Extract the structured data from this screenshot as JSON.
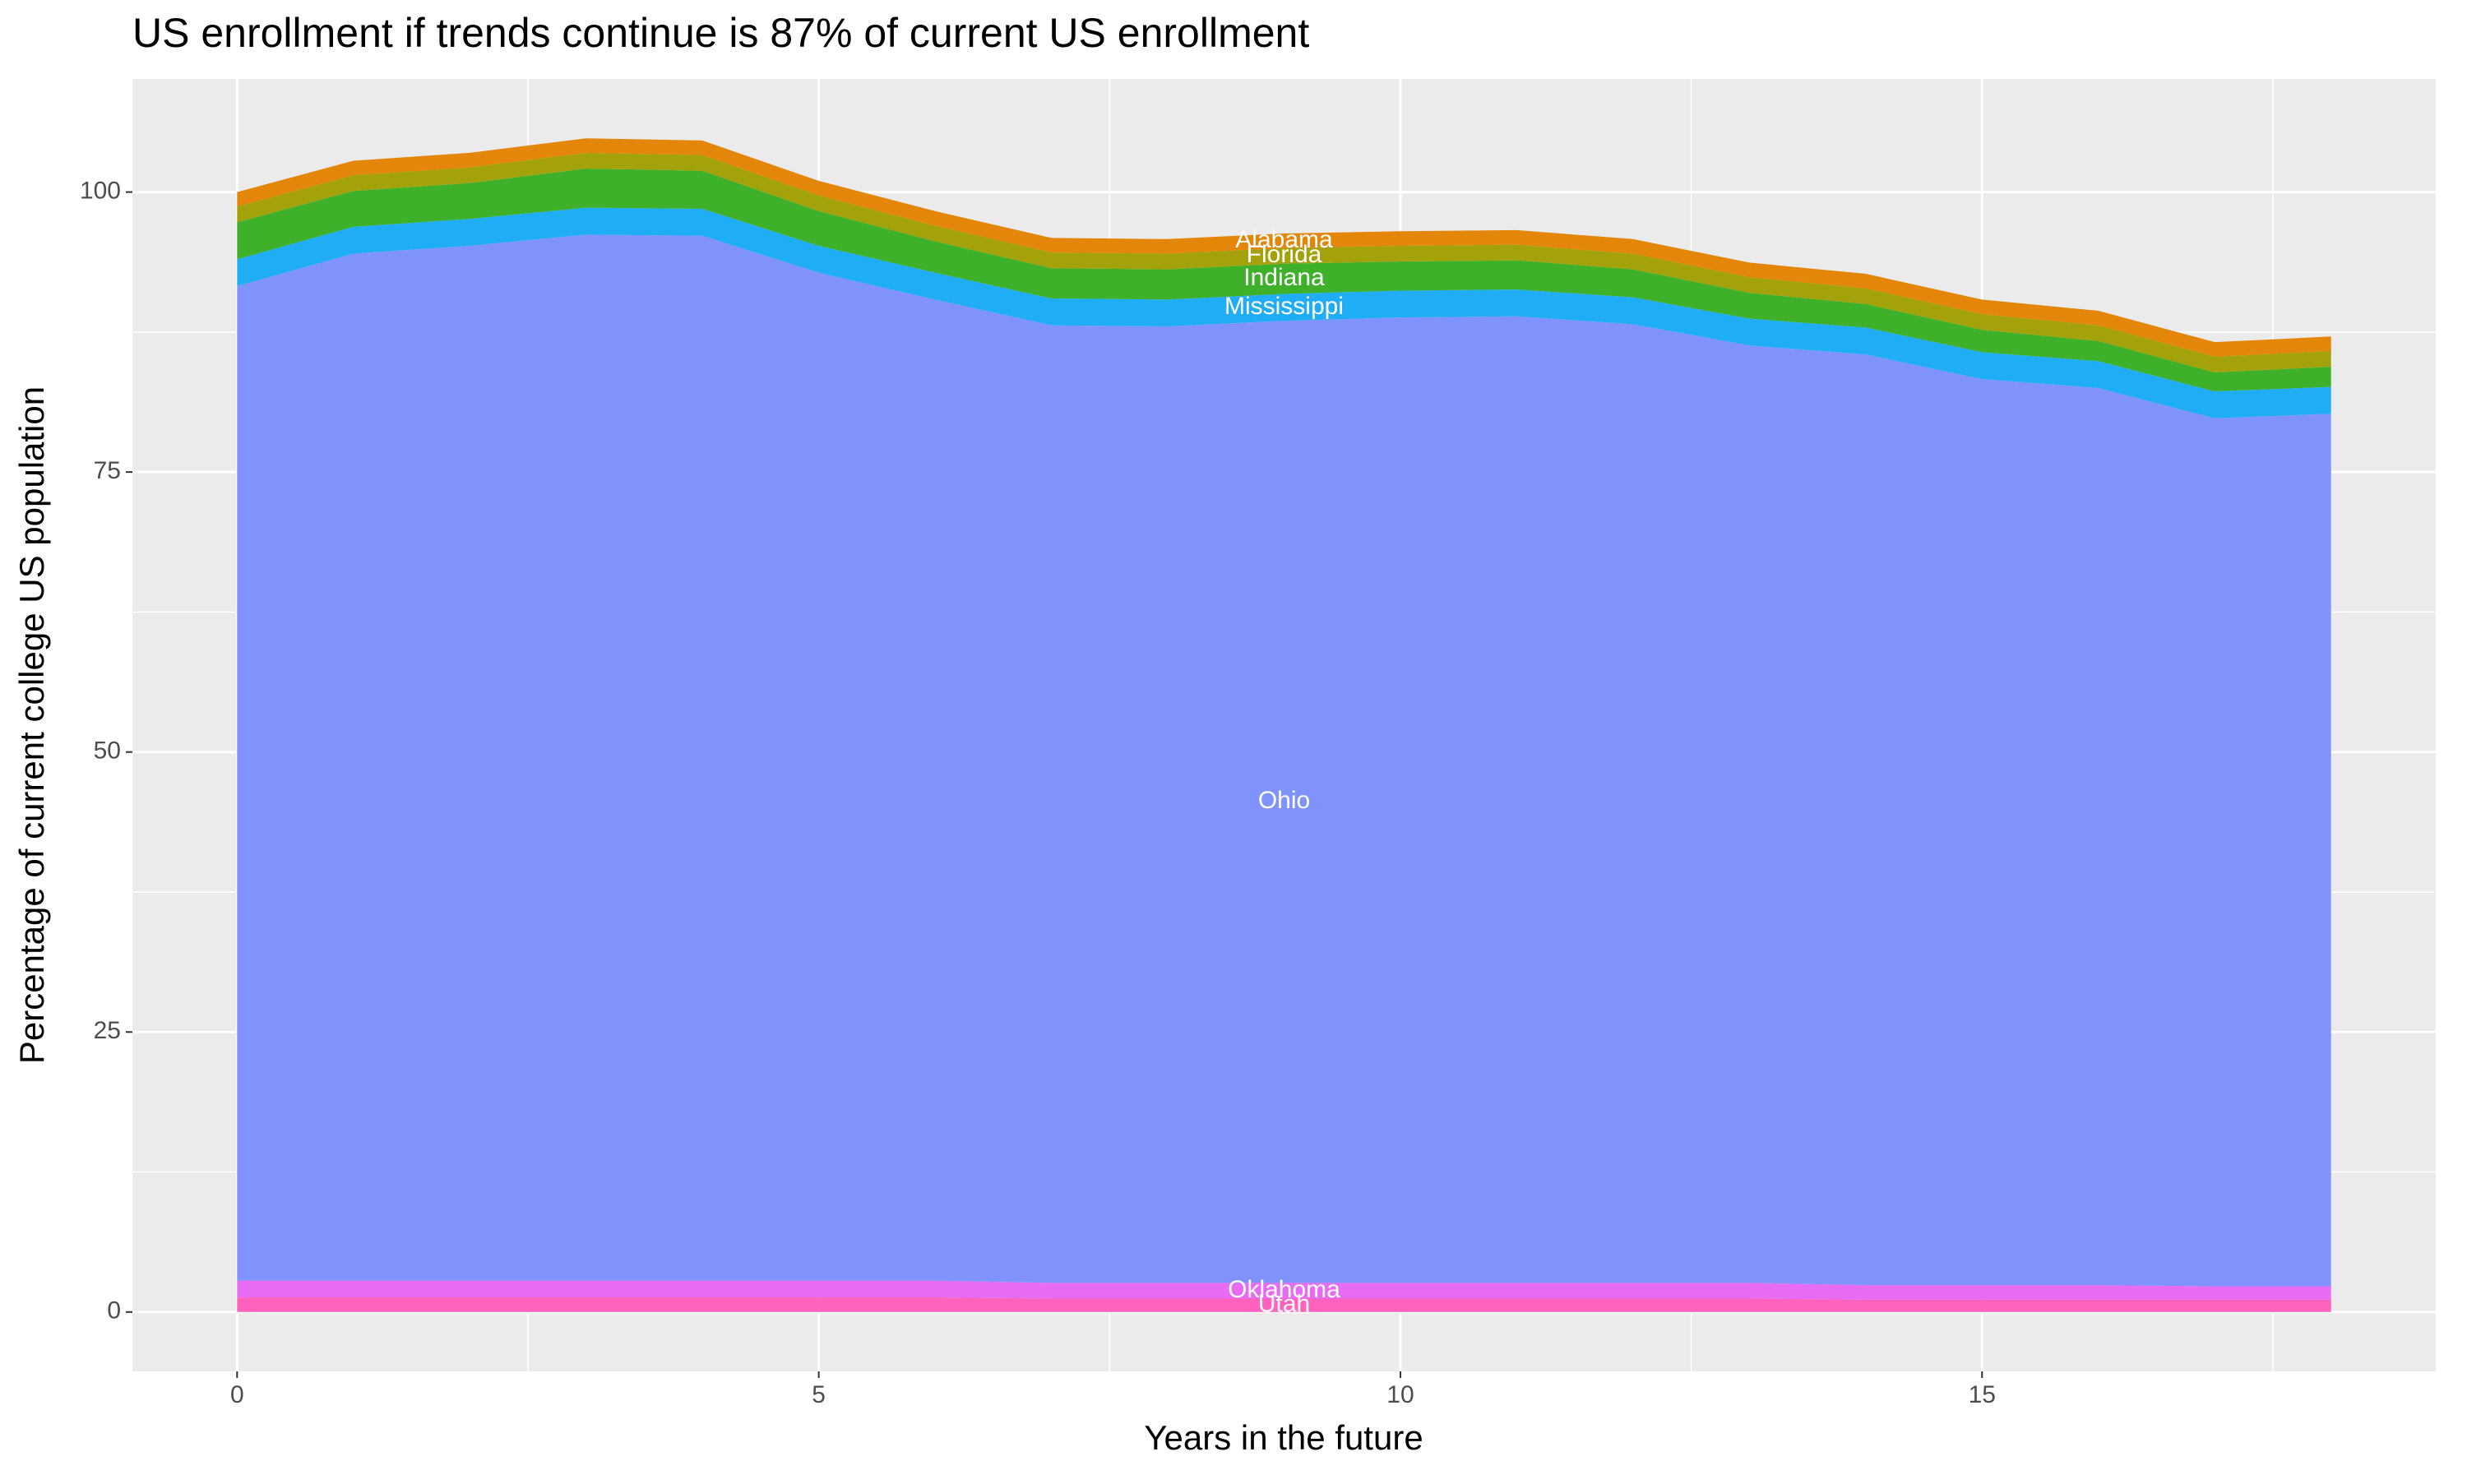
{
  "chart_data": {
    "type": "stacked-area",
    "title": "US enrollment if trends continue is 87% of current US enrollment",
    "xlabel": "Years in the future",
    "ylabel": "Percentage of current college US population",
    "x": [
      0,
      1,
      2,
      3,
      4,
      5,
      6,
      7,
      8,
      9,
      10,
      11,
      12,
      13,
      14,
      15,
      16,
      17,
      18
    ],
    "xlim": [
      -0.9,
      18.9
    ],
    "xticks": [
      0,
      5,
      10,
      15
    ],
    "ylim": [
      -5.3,
      110.1
    ],
    "yticks": [
      0,
      25,
      50,
      75,
      100
    ],
    "grid": true,
    "series": [
      {
        "name": "Utah",
        "color": "#ff62bc",
        "values": [
          1.3,
          1.3,
          1.3,
          1.3,
          1.3,
          1.3,
          1.3,
          1.2,
          1.2,
          1.2,
          1.2,
          1.2,
          1.2,
          1.2,
          1.1,
          1.1,
          1.1,
          1.1,
          1.1
        ]
      },
      {
        "name": "Oklahoma",
        "color": "#e76bf3",
        "values": [
          1.5,
          1.5,
          1.5,
          1.5,
          1.5,
          1.5,
          1.5,
          1.4,
          1.4,
          1.4,
          1.4,
          1.4,
          1.4,
          1.4,
          1.3,
          1.3,
          1.3,
          1.2,
          1.2
        ]
      },
      {
        "name": "Ohio",
        "color": "#8093fd",
        "values": [
          88.8,
          91.7,
          92.4,
          93.4,
          93.3,
          90.0,
          87.6,
          85.5,
          85.4,
          85.9,
          86.2,
          86.3,
          85.6,
          83.7,
          83.1,
          80.9,
          80.1,
          77.5,
          77.9
        ]
      },
      {
        "name": "Mississippi",
        "color": "#1fadf6",
        "values": [
          2.4,
          2.4,
          2.4,
          2.4,
          2.4,
          2.4,
          2.4,
          2.4,
          2.4,
          2.4,
          2.4,
          2.4,
          2.4,
          2.4,
          2.4,
          2.4,
          2.4,
          2.4,
          2.4
        ]
      },
      {
        "name": "Indiana",
        "color": "#3fb02a",
        "values": [
          3.3,
          3.2,
          3.2,
          3.5,
          3.4,
          3.1,
          2.8,
          2.7,
          2.7,
          2.7,
          2.6,
          2.6,
          2.5,
          2.3,
          2.1,
          2.0,
          1.8,
          1.7,
          1.8
        ]
      },
      {
        "name": "Florida",
        "color": "#a3a20a",
        "values": [
          1.4,
          1.4,
          1.4,
          1.4,
          1.4,
          1.4,
          1.4,
          1.4,
          1.4,
          1.4,
          1.4,
          1.4,
          1.4,
          1.4,
          1.4,
          1.4,
          1.4,
          1.4,
          1.4
        ]
      },
      {
        "name": "Alabama",
        "color": "#e4860a",
        "values": [
          1.3,
          1.3,
          1.3,
          1.3,
          1.3,
          1.3,
          1.3,
          1.3,
          1.3,
          1.3,
          1.3,
          1.3,
          1.3,
          1.3,
          1.3,
          1.3,
          1.3,
          1.3,
          1.3
        ]
      }
    ]
  }
}
